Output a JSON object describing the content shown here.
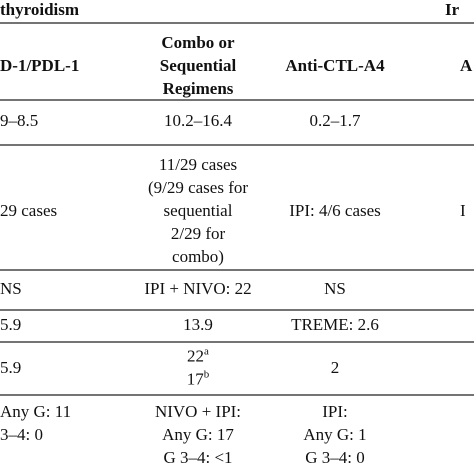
{
  "header": {
    "left": "thyroidism",
    "right": "Ir"
  },
  "columns": [
    [
      "D-1/PDL-1"
    ],
    [
      "Combo or",
      "Sequential",
      "Regimens"
    ],
    [
      "Anti-CTL-A4"
    ],
    [
      "A"
    ]
  ],
  "rows": [
    [
      [
        "9–8.5"
      ],
      [
        "10.2–16.4"
      ],
      [
        "0.2–1.7"
      ]
    ],
    [
      [
        "29 cases"
      ],
      [
        "11/29 cases",
        "(9/29 cases for",
        "sequential",
        "2/29 for",
        "combo)"
      ],
      [
        "IPI: 4/6 cases"
      ],
      [
        "I"
      ]
    ],
    [
      [
        "NS"
      ],
      [
        "IPI + NIVO: 22"
      ],
      [
        "NS"
      ]
    ],
    [
      [
        "5.9"
      ],
      [
        "13.9"
      ],
      [
        "TREME: 2.6"
      ]
    ],
    [
      [
        "5.9"
      ],
      [
        {
          "text": "22",
          "sup": "a"
        },
        {
          "text": "17",
          "sup": "b"
        }
      ],
      [
        "2"
      ]
    ],
    [
      [
        "Any G: 11",
        "3–4: 0"
      ],
      [
        "NIVO + IPI:",
        "Any G: 17",
        "G 3–4: <1"
      ],
      [
        "IPI:",
        "Any G: 1",
        "G 3–4: 0"
      ]
    ]
  ]
}
